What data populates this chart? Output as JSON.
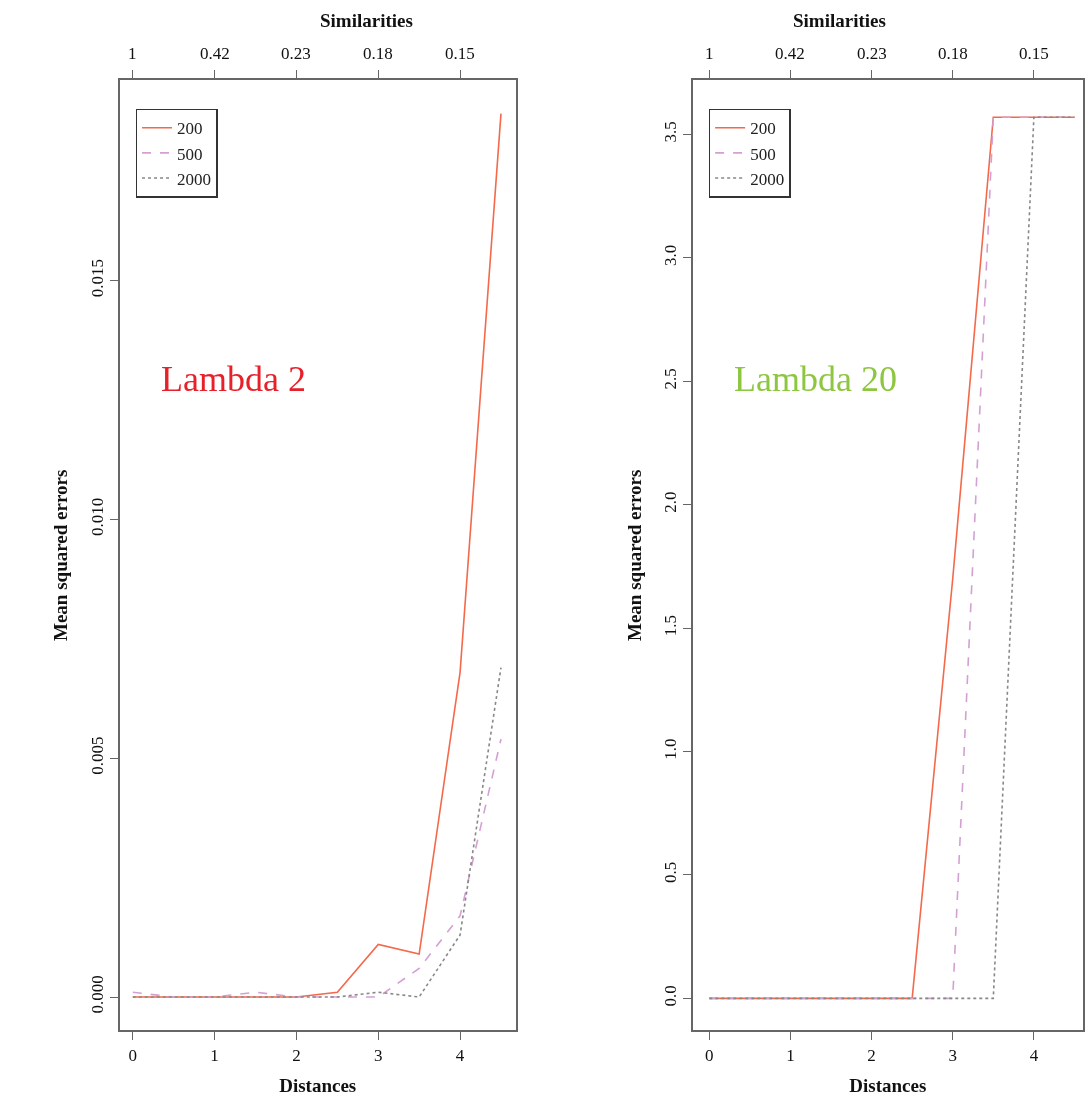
{
  "chart_data": [
    {
      "type": "line",
      "xlabel": "Distances",
      "x2label": "Similarities",
      "ylabel": "Mean squared errors",
      "annotations": [
        "Lambda 2",
        {
          "text": "1",
          "x": 0
        },
        {
          "text": "0.42",
          "x": 1
        },
        {
          "text": "0.23",
          "x": 2
        },
        {
          "text": "0.18",
          "x": 3
        },
        {
          "text": "0.15",
          "x": 4
        }
      ],
      "x": [
        0,
        0.5,
        1,
        1.5,
        2,
        2.5,
        3,
        3.5,
        4,
        4.5
      ],
      "series": [
        {
          "name": "200",
          "color": "#f4694a",
          "line_style": "solid",
          "values": [
            0,
            0,
            0,
            0,
            0,
            0.0001,
            0.0011,
            0.0009,
            0.0068,
            0.0185
          ]
        },
        {
          "name": "500",
          "color": "#d4a0d4",
          "line_style": "dashed",
          "values": [
            0.0001,
            0,
            0,
            0.0001,
            0,
            0,
            0,
            0.0006,
            0.0017,
            0.0054
          ]
        },
        {
          "name": "2000",
          "color": "#888888",
          "line_style": "dotted",
          "values": [
            0,
            0,
            0,
            0,
            0,
            0,
            0.0001,
            0,
            0.0013,
            0.0069
          ]
        }
      ],
      "xlim": [
        -0.16,
        4.68
      ],
      "xticks": [
        0,
        1,
        2,
        3,
        4
      ],
      "ylim": [
        -0.0007,
        0.0192
      ],
      "yticks": [
        {
          "value": 0,
          "label": "0.000"
        },
        {
          "value": 0.005,
          "label": "0.005"
        },
        {
          "value": 0.01,
          "label": "0.010"
        },
        {
          "value": 0.015,
          "label": "0.015"
        }
      ],
      "legend": "top left"
    },
    {
      "type": "line",
      "xlabel": "Distances",
      "x2label": "Similarities",
      "ylabel": "Mean squared errors",
      "annotations": [
        "Lambda 20",
        {
          "text": "1",
          "x": 0
        },
        {
          "text": "0.42",
          "x": 1
        },
        {
          "text": "0.23",
          "x": 2
        },
        {
          "text": "0.18",
          "x": 3
        },
        {
          "text": "0.15",
          "x": 4
        }
      ],
      "x": [
        0,
        0.5,
        1,
        1.5,
        2,
        2.5,
        3,
        3.5,
        4,
        4.5
      ],
      "series": [
        {
          "name": "200",
          "color": "#f4694a",
          "line_style": "solid",
          "values": [
            0,
            0,
            0,
            0,
            0,
            0,
            1.7,
            3.57,
            3.57,
            3.57
          ]
        },
        {
          "name": "500",
          "color": "#d4a0d4",
          "line_style": "dashed",
          "values": [
            0,
            0,
            0,
            0,
            0,
            0,
            0,
            3.57,
            3.57,
            3.57
          ]
        },
        {
          "name": "2000",
          "color": "#888888",
          "line_style": "dotted",
          "values": [
            0,
            0,
            0,
            0,
            0,
            0,
            0,
            0,
            3.57,
            3.57
          ]
        }
      ],
      "xlim": [
        -0.2,
        4.6
      ],
      "xticks": [
        0,
        1,
        2,
        3,
        4
      ],
      "ylim": [
        -0.13,
        3.72
      ],
      "yticks": [
        {
          "value": 0,
          "label": "0.0"
        },
        {
          "value": 0.5,
          "label": "0.5"
        },
        {
          "value": 1,
          "label": "1.0"
        },
        {
          "value": 1.5,
          "label": "1.5"
        },
        {
          "value": 2,
          "label": "2.0"
        },
        {
          "value": 2.5,
          "label": "2.5"
        },
        {
          "value": 3,
          "label": "3.0"
        },
        {
          "value": 3.5,
          "label": "3.5"
        }
      ],
      "legend": "top left"
    }
  ]
}
